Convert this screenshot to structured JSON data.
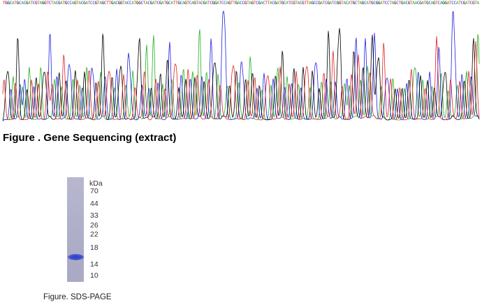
{
  "sequencing": {
    "caption": "Figure . Gene Sequencing (extract)",
    "base_calls": "TGGCATGCACGATCGTAGGTCTACGATGCCAGTACGATCCGTAGCTTGACGGTACCATGGCTACGATCGATGCATTGCAGTCAGTACGATCGGATCCAGTTGACCGTAGTCGACTTACGATGCATCGTACGTTAGCCGATCGATCGGTACATGCTAGCATGCGGATCCTAGCTGACGTAACGATGCAGTCAGGATCCATCGATCGTA",
    "trace_colors": {
      "A": "#20b020",
      "C": "#2020e0",
      "G": "#000000",
      "T": "#e02020"
    }
  },
  "gel": {
    "units": "kDa",
    "markers": [
      "70",
      "44",
      "33",
      "26",
      "22",
      "18",
      "14",
      "10"
    ],
    "caption": "Figure. SDS-PAGE"
  }
}
